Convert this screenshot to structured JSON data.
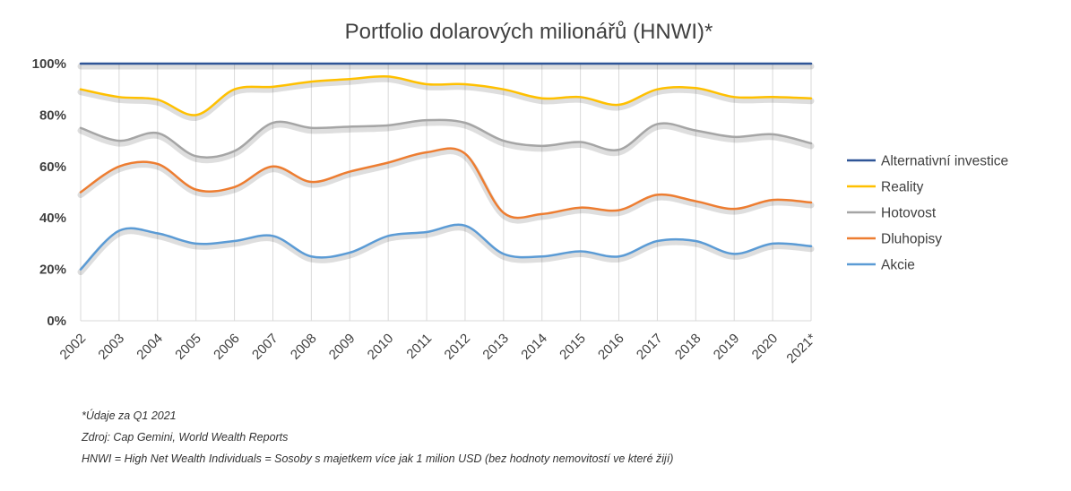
{
  "chart_data": {
    "type": "line",
    "title": "Portfolio dolarových milionářů (HNWI)*",
    "categories": [
      "2002",
      "2003",
      "2004",
      "2005",
      "2006",
      "2007",
      "2008",
      "2009",
      "2010",
      "2011",
      "2012",
      "2013",
      "2014",
      "2015",
      "2016",
      "2017",
      "2018",
      "2019",
      "2020",
      "2021*"
    ],
    "y_ticks": [
      "0%",
      "20%",
      "40%",
      "60%",
      "80%",
      "100%"
    ],
    "ylim": [
      0,
      100
    ],
    "grid": "vertical",
    "legend_position": "right",
    "series": [
      {
        "name": "Alternativní investice",
        "color": "#2f5597",
        "values": [
          100,
          100,
          100,
          100,
          100,
          100,
          100,
          100,
          100,
          100,
          100,
          100,
          100,
          100,
          100,
          100,
          100,
          100,
          100,
          100
        ]
      },
      {
        "name": "Reality",
        "color": "#ffc000",
        "values": [
          90,
          87,
          86,
          80,
          90,
          91,
          93,
          94,
          95,
          92,
          92,
          90,
          86.5,
          87,
          84,
          90,
          90.5,
          87,
          87,
          86.5
        ]
      },
      {
        "name": "Hotovost",
        "color": "#a5a5a5",
        "values": [
          75,
          70,
          73,
          64,
          66,
          77,
          75,
          75.5,
          76,
          78,
          77,
          70,
          68,
          69.5,
          66.5,
          76.5,
          74,
          71.5,
          72.5,
          69
        ]
      },
      {
        "name": "Dluhopisy",
        "color": "#ed7d31",
        "values": [
          50,
          60,
          61,
          51,
          52,
          60,
          54,
          58,
          61.5,
          65.5,
          65,
          42,
          41.5,
          44,
          43,
          49,
          46.5,
          43.5,
          47,
          46
        ]
      },
      {
        "name": "Akcie",
        "color": "#5b9bd5",
        "values": [
          20,
          35,
          34,
          30,
          31,
          33,
          25,
          26.5,
          33,
          34.5,
          37,
          26,
          25,
          27,
          25,
          31,
          31,
          26,
          30,
          29
        ]
      }
    ]
  },
  "footnotes": {
    "note1": "*Údaje za Q1 2021",
    "note2": "Zdroj: Cap Gemini, World Wealth Reports",
    "note3": "HNWI = High Net Wealth Individuals = Sosoby s majetkem více jak 1 milion USD (bez hodnoty nemovitostí ve které žijí)"
  }
}
